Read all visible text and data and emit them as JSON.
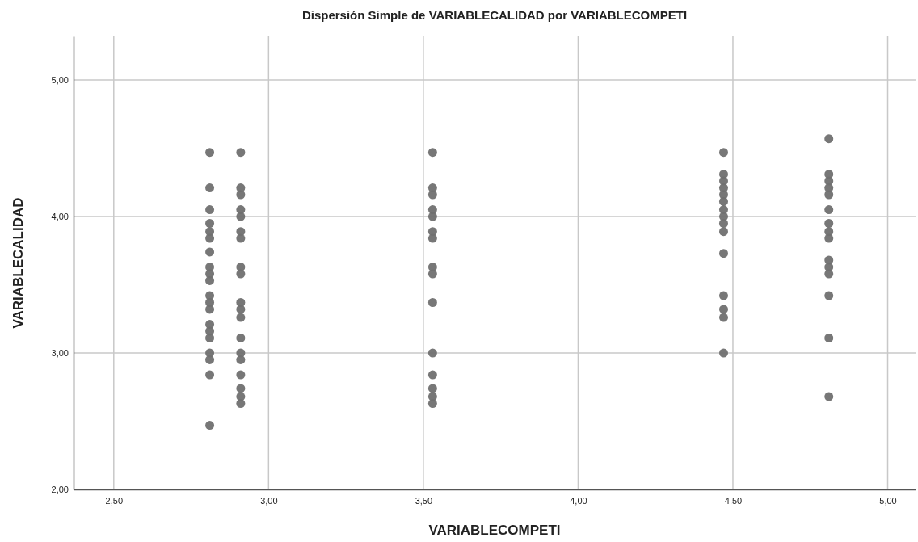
{
  "chart_data": {
    "type": "scatter",
    "title": "Dispersión Simple de VARIABLECALIDAD por VARIABLECOMPETI",
    "xlabel": "VARIABLECOMPETI",
    "ylabel": "VARIABLECALIDAD",
    "xlim": [
      2.37,
      5.09
    ],
    "ylim": [
      2,
      5.32
    ],
    "xticks": [
      {
        "value": 2.5,
        "label": "2,50"
      },
      {
        "value": 3,
        "label": "3,00"
      },
      {
        "value": 3.5,
        "label": "3,50"
      },
      {
        "value": 4,
        "label": "4,00"
      },
      {
        "value": 4.5,
        "label": "4,50"
      },
      {
        "value": 5,
        "label": "5,00"
      }
    ],
    "yticks": [
      {
        "value": 2,
        "label": "2,00"
      },
      {
        "value": 3,
        "label": "3,00"
      },
      {
        "value": 4,
        "label": "4,00"
      },
      {
        "value": 5,
        "label": "5,00"
      }
    ],
    "grid": true,
    "marker": "circle",
    "series": [
      {
        "color": "#707070",
        "x": [
          2.81,
          2.81,
          2.81,
          2.81,
          2.81,
          2.81,
          2.81,
          2.81,
          2.81,
          2.81,
          2.81,
          2.81,
          2.81,
          2.81,
          2.81,
          2.81,
          2.81,
          2.81,
          2.81,
          2.81,
          2.91,
          2.91,
          2.91,
          2.91,
          2.91,
          2.91,
          2.91,
          2.91,
          2.91,
          2.91,
          2.91,
          2.91,
          2.91,
          2.91,
          2.91,
          2.91,
          2.91,
          2.91,
          2.91,
          3.53,
          3.53,
          3.53,
          3.53,
          3.53,
          3.53,
          3.53,
          3.53,
          3.53,
          3.53,
          3.53,
          3.53,
          3.53,
          3.53,
          3.53,
          4.47,
          4.47,
          4.47,
          4.47,
          4.47,
          4.47,
          4.47,
          4.47,
          4.47,
          4.47,
          4.47,
          4.47,
          4.47,
          4.47,
          4.47,
          4.81,
          4.81,
          4.81,
          4.81,
          4.81,
          4.81,
          4.81,
          4.81,
          4.81,
          4.81,
          4.81,
          4.81,
          4.81,
          4.81,
          4.81
        ],
        "values": [
          4.47,
          4.21,
          4.05,
          3.95,
          3.89,
          3.84,
          3.74,
          3.63,
          3.58,
          3.53,
          3.42,
          3.37,
          3.32,
          3.21,
          3.16,
          3.11,
          3.0,
          2.95,
          2.84,
          2.47,
          4.47,
          4.21,
          4.16,
          4.05,
          4.0,
          3.89,
          3.84,
          3.63,
          3.58,
          3.37,
          3.32,
          3.26,
          3.11,
          3.0,
          2.95,
          2.84,
          2.74,
          2.68,
          2.63,
          4.47,
          4.21,
          4.16,
          4.05,
          4.0,
          3.89,
          3.84,
          3.63,
          3.58,
          3.37,
          3.0,
          2.84,
          2.74,
          2.68,
          2.63,
          4.47,
          4.31,
          4.26,
          4.21,
          4.16,
          4.11,
          4.05,
          4.0,
          3.95,
          3.89,
          3.73,
          3.42,
          3.32,
          3.26,
          3.0,
          4.57,
          4.31,
          4.26,
          4.21,
          4.16,
          4.05,
          3.95,
          3.89,
          3.84,
          3.68,
          3.63,
          3.58,
          3.42,
          3.11,
          2.68
        ]
      }
    ]
  }
}
